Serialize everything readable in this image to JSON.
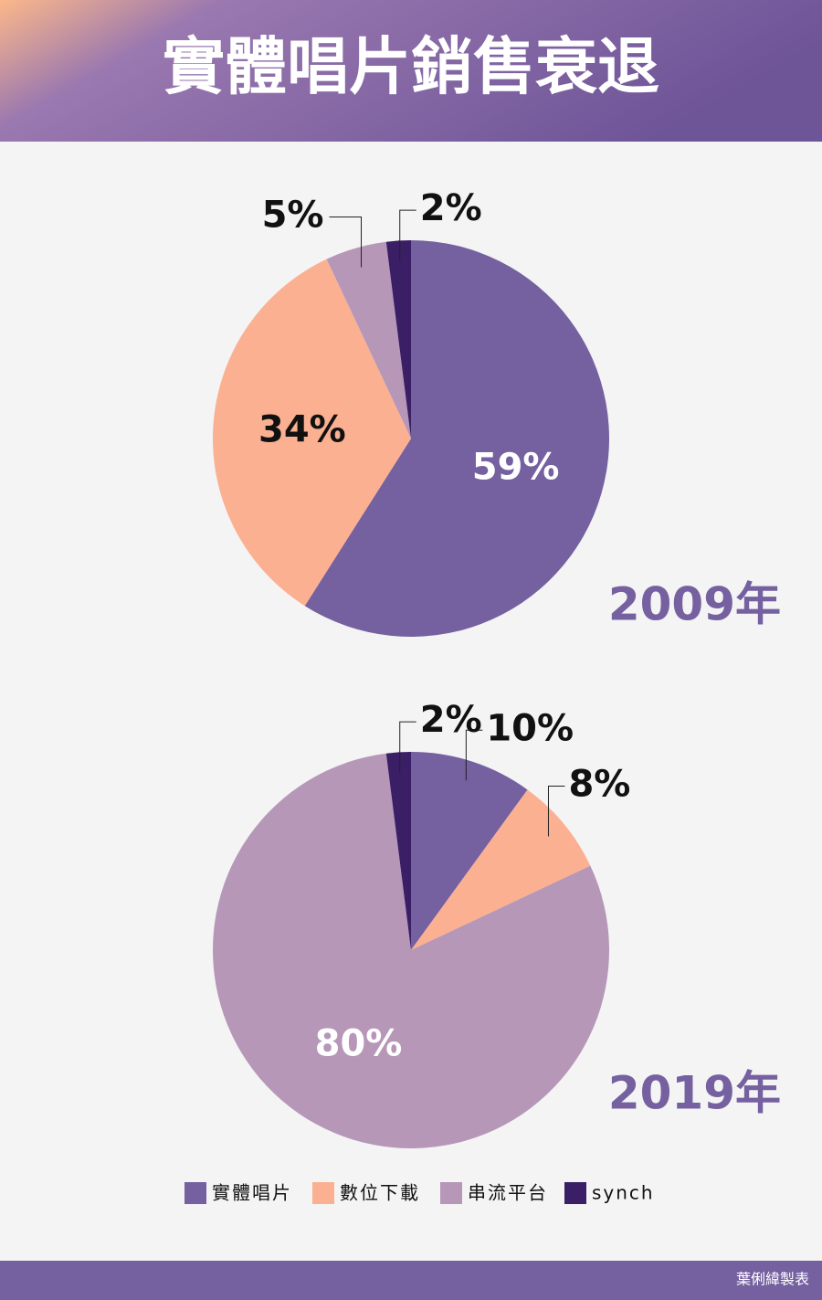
{
  "title": "實體唱片銷售衰退",
  "chart_data": [
    {
      "type": "pie",
      "title": "2009年",
      "categories": [
        "實體唱片",
        "數位下載",
        "串流平台",
        "synch"
      ],
      "values": [
        59,
        34,
        5,
        2
      ],
      "value_labels": [
        "59%",
        "34%",
        "5%",
        "2%"
      ],
      "colors": [
        "#7560a0",
        "#fbb091",
        "#b697b8",
        "#3b1f66"
      ]
    },
    {
      "type": "pie",
      "title": "2019年",
      "categories": [
        "實體唱片",
        "數位下載",
        "串流平台",
        "synch"
      ],
      "values": [
        10,
        8,
        80,
        2
      ],
      "value_labels": [
        "10%",
        "8%",
        "80%",
        "2%"
      ],
      "colors": [
        "#7560a0",
        "#fbb091",
        "#b697b8",
        "#3b1f66"
      ]
    }
  ],
  "credit": "葉俐緯製表"
}
